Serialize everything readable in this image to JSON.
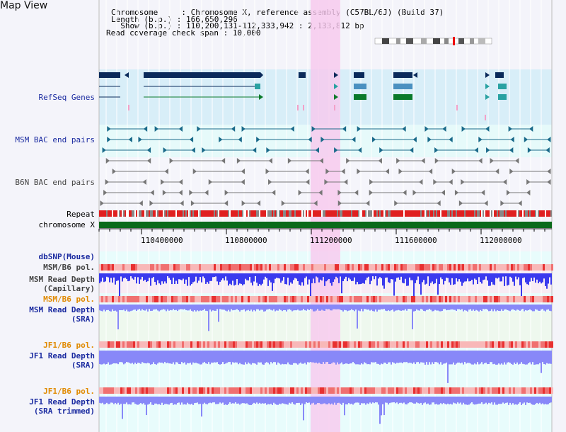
{
  "header": {
    "title": "Map View",
    "chromosome_line": "Chromosome     : Chromosome X, reference assembly (C57BL/6J) (Build 37)",
    "length_line": "Length (b.p.) : 166,650,296",
    "show_line": "  Show (b.p.) : 110,200,131-112,333,942 : 2,133,812 bp",
    "coverage_line": "Read coverage check span : 10,000"
  },
  "tracks": {
    "refseq": "RefSeq Genes",
    "msm_bac": "MSM BAC end pairs",
    "b6n_bac": "B6N BAC end pairs",
    "repeat": "Repeat",
    "chromosome": "chromosome X",
    "dbsnp": "dbSNP(Mouse)",
    "msm_b6_pol_1": "MSM/B6 pol.",
    "msm_depth_cap": "MSM Read Depth\n(Capillary)",
    "msm_b6_pol_2": "MSM/B6 pol.",
    "msm_depth_sra": "MSM Read Depth\n(SRA)",
    "jf1_b6_pol_1": "JF1/B6 pol.",
    "jf1_depth_sra": "JF1 Read Depth\n(SRA)",
    "jf1_b6_pol_2": "JF1/B6 pol.",
    "jf1_depth_trim": "JF1 Read Depth\n(SRA trimmed)"
  },
  "ticks": [
    "110400000",
    "110800000",
    "111200000",
    "111600000",
    "112000000"
  ],
  "colors": {
    "refseq_bg": "#d8eef8",
    "msm_bg": "#e6fafa",
    "highlight": "#f7d8f2",
    "gene_dark": "#0a2a5a",
    "gene_teal": "#2aa2a2",
    "gene_green": "#0a7a2a",
    "msm_feature": "#1a6a8a",
    "b6n_feature": "#666666",
    "repeat_red": "#e02020",
    "chrom_green": "#0a6a1a",
    "depth_blue": "#3a3aee",
    "depth_light": "#8888f8",
    "pol_pink": "#f4a0a0"
  }
}
